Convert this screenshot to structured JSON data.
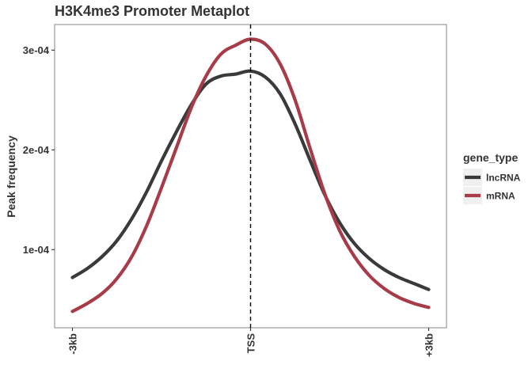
{
  "chart_data": {
    "type": "line",
    "title": "H3K4me3 Promoter Metaplot",
    "xlabel": "",
    "ylabel": "Peak frequency",
    "x_ticks": [
      {
        "value": -3000,
        "label": "-3kb"
      },
      {
        "value": 0,
        "label": "TSS"
      },
      {
        "value": 3000,
        "label": "+3kb"
      }
    ],
    "y_ticks": [
      {
        "value": 0.0001,
        "label": "1e-04"
      },
      {
        "value": 0.0002,
        "label": "2e-04"
      },
      {
        "value": 0.0003,
        "label": "3e-04"
      }
    ],
    "xlim": [
      -3300,
      3300
    ],
    "ylim": [
      2.16e-05,
      0.0003257
    ],
    "vline": {
      "x": 0,
      "style": "dashed"
    },
    "grid": false,
    "legend": {
      "title": "gene_type",
      "position": "right"
    },
    "series": [
      {
        "name": "lncRNA",
        "color": "#3a3a3a",
        "x": [
          -3000,
          -2750,
          -2500,
          -2250,
          -2000,
          -1750,
          -1500,
          -1250,
          -1000,
          -750,
          -500,
          -250,
          0,
          250,
          500,
          750,
          1000,
          1250,
          1500,
          1750,
          2000,
          2250,
          2500,
          2750,
          3000
        ],
        "y": [
          7.2e-05,
          8.1e-05,
          9.3e-05,
          0.000109,
          0.000131,
          0.000158,
          0.000189,
          0.000218,
          0.000245,
          0.000266,
          0.000274,
          0.000276,
          0.000279,
          0.000273,
          0.000256,
          0.000226,
          0.00019,
          0.000155,
          0.000127,
          0.000106,
          9.1e-05,
          8e-05,
          7.2e-05,
          6.6e-05,
          6e-05
        ]
      },
      {
        "name": "mRNA",
        "color": "#a83b48",
        "x": [
          -3000,
          -2750,
          -2500,
          -2250,
          -2000,
          -1750,
          -1500,
          -1250,
          -1000,
          -750,
          -500,
          -250,
          0,
          250,
          500,
          750,
          1000,
          1250,
          1500,
          1750,
          2000,
          2250,
          2500,
          2750,
          3000
        ],
        "y": [
          3.8e-05,
          4.6e-05,
          5.6e-05,
          7.1e-05,
          9.3e-05,
          0.000124,
          0.000162,
          0.000202,
          0.000242,
          0.000274,
          0.000296,
          0.000305,
          0.000311,
          0.000306,
          0.000286,
          0.00025,
          0.000202,
          0.000156,
          0.000119,
          9.3e-05,
          7.4e-05,
          6.1e-05,
          5.2e-05,
          4.6e-05,
          4.2e-05
        ]
      }
    ]
  }
}
